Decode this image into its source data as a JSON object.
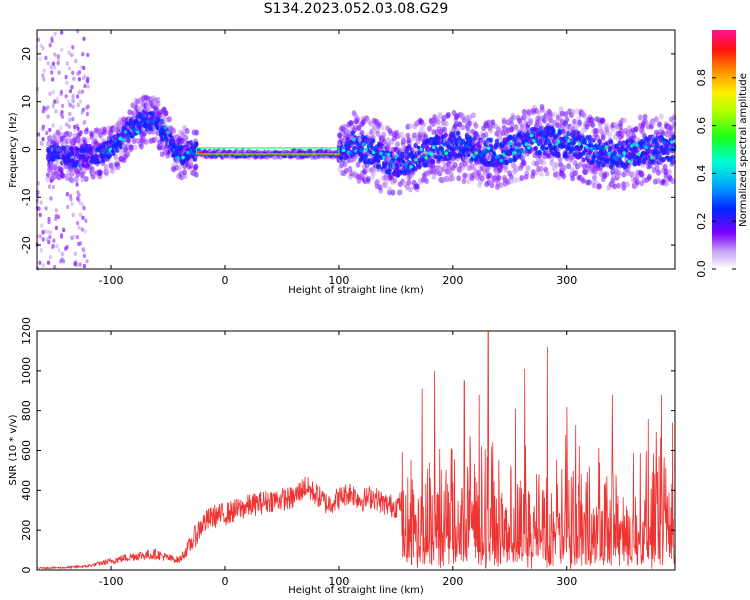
{
  "title": "S134.2023.052.03.08.G29",
  "chart_data": [
    {
      "type": "heatmap",
      "xlabel": "Height of straight line (km)",
      "ylabel": "Frequency (Hz)",
      "xlim": [
        -165,
        395
      ],
      "ylim": [
        -25,
        25
      ],
      "xticks": [
        -100,
        0,
        100,
        200,
        300
      ],
      "yticks": [
        -20,
        -10,
        0,
        10,
        20
      ],
      "colorbar": {
        "label": "Normalized spectral amplitude",
        "range": [
          0,
          1
        ],
        "ticks": [
          0.0,
          0.2,
          0.4,
          0.6,
          0.8
        ],
        "colormap": "rainbow",
        "top_color": "#ff1493",
        "bottom_color": "#ffffff"
      },
      "ridge": {
        "x": [
          -165,
          -130,
          -110,
          -95,
          -80,
          -70,
          -60,
          -52,
          -45,
          -38,
          -30,
          -20,
          0,
          40,
          80,
          100,
          110,
          125,
          140,
          155,
          170,
          185,
          200,
          220,
          240,
          260,
          280,
          300,
          310,
          330,
          350,
          370,
          395
        ],
        "y": [
          -1,
          -1.5,
          -1,
          1,
          5,
          6,
          6,
          3,
          0,
          -1,
          0,
          -1,
          -1,
          -1,
          -1,
          -1,
          1,
          0,
          -2,
          -3,
          -1,
          0,
          1,
          0,
          -1,
          1,
          2,
          1,
          1,
          -1,
          -1,
          0,
          0
        ]
      }
    },
    {
      "type": "line",
      "xlabel": "Height of straight line (km)",
      "ylabel": "SNR (10 * v/v)",
      "xlim": [
        -165,
        395
      ],
      "ylim": [
        0,
        1200
      ],
      "xticks": [
        -100,
        0,
        100,
        200,
        300
      ],
      "yticks": [
        0,
        200,
        400,
        600,
        800,
        1000,
        1200
      ],
      "line_color": "#ee3333",
      "envelope": {
        "x": [
          -165,
          -140,
          -120,
          -100,
          -80,
          -60,
          -50,
          -40,
          -30,
          -20,
          -10,
          0,
          20,
          40,
          60,
          70,
          80,
          90,
          100,
          110,
          120,
          130,
          140,
          150,
          155,
          160,
          200,
          250,
          300,
          350,
          395
        ],
        "y": [
          10,
          12,
          20,
          45,
          70,
          80,
          60,
          50,
          130,
          230,
          270,
          280,
          320,
          350,
          360,
          420,
          380,
          330,
          360,
          390,
          350,
          370,
          330,
          320,
          340,
          300,
          320,
          320,
          310,
          300,
          310
        ]
      },
      "spread_after_x": 155,
      "peaks": [
        {
          "x": 173,
          "y": 910
        },
        {
          "x": 184,
          "y": 1000
        },
        {
          "x": 210,
          "y": 950
        },
        {
          "x": 223,
          "y": 880
        },
        {
          "x": 231,
          "y": 1195
        },
        {
          "x": 255,
          "y": 810
        },
        {
          "x": 263,
          "y": 1010
        },
        {
          "x": 283,
          "y": 1120
        },
        {
          "x": 300,
          "y": 820
        },
        {
          "x": 340,
          "y": 880
        },
        {
          "x": 383,
          "y": 880
        },
        {
          "x": 393,
          "y": 740
        }
      ]
    }
  ]
}
